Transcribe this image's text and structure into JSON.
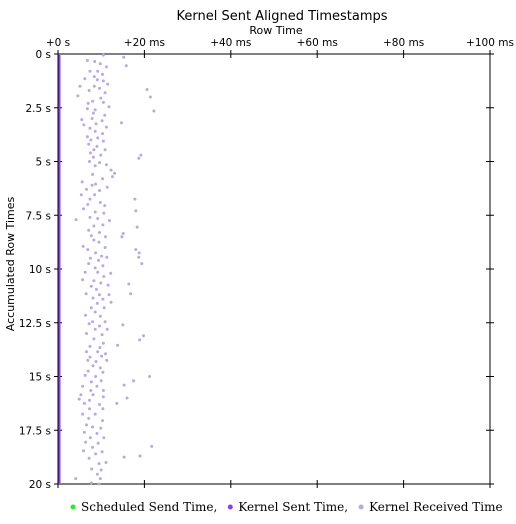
{
  "chart_data": {
    "type": "scatter",
    "title": "Kernel Sent Aligned Timestamps",
    "xlabel": "Row Time",
    "ylabel": "Accumulated Row Times",
    "x_axis_position": "top",
    "y_axis_inverted": true,
    "x_unit": "ms",
    "y_unit": "s",
    "xlim": [
      0,
      100
    ],
    "ylim": [
      0,
      20
    ],
    "x_ticks": [
      0,
      20,
      40,
      60,
      80,
      100
    ],
    "x_tick_labels": [
      "+0 s",
      "+20 ms",
      "+40 ms",
      "+60 ms",
      "+80 ms",
      "+100 ms"
    ],
    "y_ticks": [
      0,
      2.5,
      5,
      7.5,
      10,
      12.5,
      15,
      17.5,
      20
    ],
    "y_tick_labels": [
      "0 s",
      "2.5 s",
      "5 s",
      "7.5 s",
      "10 s",
      "12.5 s",
      "15 s",
      "17.5 s",
      "20 s"
    ],
    "grid": false,
    "legend_position": "bottom",
    "legend_separator": ",",
    "series": [
      {
        "name": "Scheduled Send Time",
        "color": "#22ee22",
        "points": []
      },
      {
        "name": "Kernel Sent Time",
        "color": "#8f3fe0",
        "points": []
      },
      {
        "name": "Kernel Received Time",
        "color": "#b9a8e2",
        "points": [
          [
            10.5,
            0.05
          ],
          [
            15.2,
            0.15
          ],
          [
            6.8,
            0.3
          ],
          [
            8.5,
            0.35
          ],
          [
            9.8,
            0.45
          ],
          [
            15.8,
            0.55
          ],
          [
            11.2,
            0.6
          ],
          [
            7.4,
            0.8
          ],
          [
            9.2,
            0.8
          ],
          [
            10.3,
            0.95
          ],
          [
            8.4,
            1.05
          ],
          [
            6.2,
            1.15
          ],
          [
            9.1,
            1.2
          ],
          [
            10.5,
            1.25
          ],
          [
            11.5,
            1.4
          ],
          [
            5.1,
            1.5
          ],
          [
            8.4,
            1.5
          ],
          [
            9.6,
            1.6
          ],
          [
            7.2,
            1.7
          ],
          [
            10.9,
            1.8
          ],
          [
            20.6,
            1.65
          ],
          [
            4.6,
            1.95
          ],
          [
            9.9,
            2.05
          ],
          [
            8.0,
            2.2
          ],
          [
            7.0,
            2.3
          ],
          [
            10.5,
            2.25
          ],
          [
            21.4,
            2.0
          ],
          [
            6.8,
            2.55
          ],
          [
            8.6,
            2.6
          ],
          [
            11.8,
            2.45
          ],
          [
            8.2,
            2.75
          ],
          [
            10.8,
            2.85
          ],
          [
            22.2,
            2.65
          ],
          [
            5.5,
            3.05
          ],
          [
            7.9,
            3.0
          ],
          [
            10.2,
            3.1
          ],
          [
            6.0,
            3.3
          ],
          [
            8.8,
            3.25
          ],
          [
            7.4,
            3.45
          ],
          [
            11.2,
            3.4
          ],
          [
            14.7,
            3.2
          ],
          [
            8.6,
            3.6
          ],
          [
            10.3,
            3.7
          ],
          [
            6.8,
            3.85
          ],
          [
            9.2,
            3.9
          ],
          [
            7.6,
            4.0
          ],
          [
            10.5,
            4.05
          ],
          [
            7.1,
            4.2
          ],
          [
            9.0,
            4.3
          ],
          [
            8.3,
            4.45
          ],
          [
            10.9,
            4.45
          ],
          [
            7.5,
            4.6
          ],
          [
            9.9,
            4.7
          ],
          [
            8.2,
            4.8
          ],
          [
            19.2,
            4.7
          ],
          [
            18.7,
            4.85
          ],
          [
            7.3,
            5.0
          ],
          [
            9.6,
            5.05
          ],
          [
            8.6,
            5.2
          ],
          [
            11.2,
            5.15
          ],
          [
            12.3,
            5.4
          ],
          [
            8.0,
            5.6
          ],
          [
            13.1,
            5.55
          ],
          [
            12.6,
            5.7
          ],
          [
            10.3,
            5.8
          ],
          [
            5.6,
            5.95
          ],
          [
            8.7,
            6.05
          ],
          [
            7.9,
            6.1
          ],
          [
            11.4,
            6.2
          ],
          [
            6.6,
            6.3
          ],
          [
            9.6,
            6.35
          ],
          [
            5.4,
            6.55
          ],
          [
            8.5,
            6.55
          ],
          [
            7.4,
            6.75
          ],
          [
            9.8,
            6.9
          ],
          [
            17.8,
            6.75
          ],
          [
            6.9,
            7.0
          ],
          [
            10.8,
            7.05
          ],
          [
            5.9,
            7.2
          ],
          [
            8.6,
            7.35
          ],
          [
            18.0,
            7.3
          ],
          [
            10.6,
            7.4
          ],
          [
            7.4,
            7.6
          ],
          [
            9.2,
            7.65
          ],
          [
            4.2,
            7.7
          ],
          [
            11.9,
            7.75
          ],
          [
            8.3,
            8.0
          ],
          [
            10.4,
            7.95
          ],
          [
            7.1,
            8.2
          ],
          [
            9.6,
            8.3
          ],
          [
            15.1,
            8.35
          ],
          [
            18.3,
            8.05
          ],
          [
            7.7,
            8.45
          ],
          [
            11.0,
            8.5
          ],
          [
            14.8,
            8.5
          ],
          [
            8.3,
            8.65
          ],
          [
            9.5,
            8.75
          ],
          [
            5.8,
            8.95
          ],
          [
            10.9,
            9.0
          ],
          [
            6.9,
            9.1
          ],
          [
            8.7,
            9.25
          ],
          [
            18.0,
            9.1
          ],
          [
            18.8,
            9.25
          ],
          [
            10.1,
            9.4
          ],
          [
            7.5,
            9.5
          ],
          [
            11.3,
            9.45
          ],
          [
            18.7,
            9.45
          ],
          [
            9.4,
            9.6
          ],
          [
            7.1,
            9.75
          ],
          [
            10.4,
            9.85
          ],
          [
            19.4,
            9.75
          ],
          [
            8.6,
            9.95
          ],
          [
            6.3,
            10.15
          ],
          [
            9.2,
            10.15
          ],
          [
            12.2,
            10.2
          ],
          [
            10.6,
            10.35
          ],
          [
            5.7,
            10.5
          ],
          [
            8.3,
            10.55
          ],
          [
            9.9,
            10.65
          ],
          [
            7.7,
            10.8
          ],
          [
            11.6,
            10.75
          ],
          [
            16.4,
            10.7
          ],
          [
            8.9,
            10.95
          ],
          [
            6.5,
            11.15
          ],
          [
            9.6,
            11.2
          ],
          [
            11.8,
            11.2
          ],
          [
            16.8,
            11.15
          ],
          [
            8.1,
            11.35
          ],
          [
            10.4,
            11.4
          ],
          [
            9.1,
            11.6
          ],
          [
            12.3,
            11.55
          ],
          [
            7.7,
            11.8
          ],
          [
            10.7,
            11.8
          ],
          [
            8.6,
            12.0
          ],
          [
            6.4,
            12.15
          ],
          [
            9.8,
            12.2
          ],
          [
            8.0,
            12.45
          ],
          [
            10.9,
            12.45
          ],
          [
            7.2,
            12.55
          ],
          [
            9.6,
            12.65
          ],
          [
            15.0,
            12.6
          ],
          [
            8.6,
            12.8
          ],
          [
            11.4,
            12.8
          ],
          [
            6.6,
            13.0
          ],
          [
            10.2,
            13.05
          ],
          [
            19.8,
            13.1
          ],
          [
            8.3,
            13.25
          ],
          [
            18.9,
            13.3
          ],
          [
            10.5,
            13.45
          ],
          [
            7.4,
            13.6
          ],
          [
            9.7,
            13.65
          ],
          [
            13.8,
            13.55
          ],
          [
            6.6,
            13.85
          ],
          [
            9.2,
            13.85
          ],
          [
            11.0,
            13.95
          ],
          [
            7.4,
            14.1
          ],
          [
            10.1,
            14.05
          ],
          [
            6.9,
            14.25
          ],
          [
            8.8,
            14.3
          ],
          [
            11.3,
            14.25
          ],
          [
            8.1,
            14.5
          ],
          [
            9.8,
            14.6
          ],
          [
            7.0,
            14.75
          ],
          [
            10.4,
            14.8
          ],
          [
            6.3,
            14.95
          ],
          [
            8.7,
            15.0
          ],
          [
            21.2,
            15.0
          ],
          [
            7.7,
            15.25
          ],
          [
            10.0,
            15.2
          ],
          [
            17.5,
            15.2
          ],
          [
            5.7,
            15.45
          ],
          [
            9.0,
            15.45
          ],
          [
            15.3,
            15.4
          ],
          [
            7.6,
            15.65
          ],
          [
            10.5,
            15.65
          ],
          [
            5.3,
            15.85
          ],
          [
            8.1,
            15.85
          ],
          [
            10.5,
            15.95
          ],
          [
            4.9,
            16.05
          ],
          [
            7.3,
            16.1
          ],
          [
            16.0,
            16.0
          ],
          [
            6.1,
            16.25
          ],
          [
            9.6,
            16.3
          ],
          [
            13.6,
            16.25
          ],
          [
            7.3,
            16.5
          ],
          [
            10.4,
            16.5
          ],
          [
            5.7,
            16.75
          ],
          [
            8.6,
            16.75
          ],
          [
            7.1,
            16.95
          ],
          [
            10.3,
            17.05
          ],
          [
            6.6,
            17.25
          ],
          [
            8.0,
            17.35
          ],
          [
            9.9,
            17.4
          ],
          [
            6.1,
            17.6
          ],
          [
            9.0,
            17.65
          ],
          [
            7.5,
            17.85
          ],
          [
            10.6,
            17.85
          ],
          [
            6.4,
            18.05
          ],
          [
            9.3,
            18.1
          ],
          [
            8.0,
            18.3
          ],
          [
            21.7,
            18.25
          ],
          [
            5.9,
            18.45
          ],
          [
            10.2,
            18.5
          ],
          [
            8.7,
            18.6
          ],
          [
            7.2,
            18.8
          ],
          [
            15.3,
            18.75
          ],
          [
            19.0,
            18.7
          ],
          [
            9.5,
            19.05
          ],
          [
            11.1,
            19.0
          ],
          [
            7.8,
            19.3
          ],
          [
            10.0,
            19.35
          ],
          [
            9.1,
            19.55
          ],
          [
            4.1,
            19.75
          ],
          [
            9.8,
            19.75
          ],
          [
            7.7,
            19.95
          ],
          [
            9.5,
            20.0
          ]
        ]
      }
    ]
  }
}
